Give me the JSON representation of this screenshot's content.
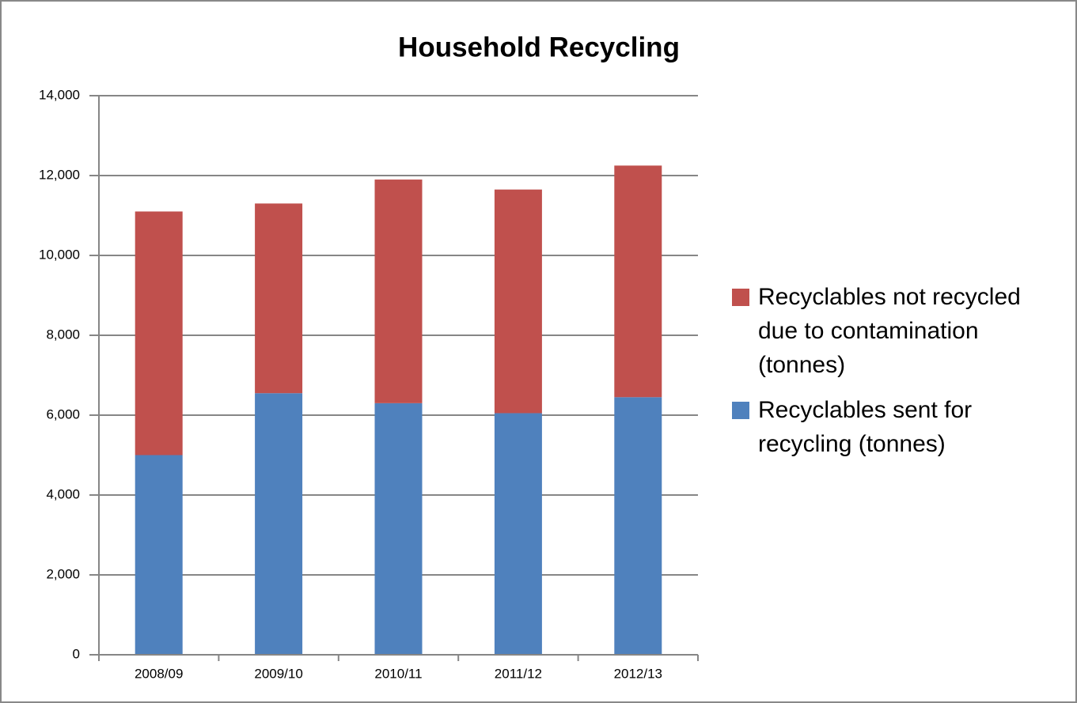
{
  "chart_data": {
    "type": "bar",
    "stacked": true,
    "title": "Household Recycling",
    "categories": [
      "2008/09",
      "2009/10",
      "2010/11",
      "2011/12",
      "2012/13"
    ],
    "series": [
      {
        "name": "Recyclables sent for recycling (tonnes)",
        "color": "#4f81bd",
        "values": [
          5000,
          6550,
          6300,
          6050,
          6450
        ]
      },
      {
        "name": "Recyclables not recycled due to contamination (tonnes)",
        "color": "#c0504d",
        "values": [
          6100,
          4750,
          5600,
          5600,
          5800
        ]
      }
    ],
    "ylim": [
      0,
      14000
    ],
    "yticks": [
      0,
      {
        "value": 2000,
        "label": "2,000"
      },
      {
        "value": 4000,
        "label": "4,000"
      },
      {
        "value": 6000,
        "label": "6,000"
      },
      {
        "value": 8000,
        "label": "8,000"
      },
      {
        "value": 10000,
        "label": "10,000"
      },
      {
        "value": 12000,
        "label": "12,000"
      },
      {
        "value": 14000,
        "label": "14,000"
      }
    ],
    "grid": true,
    "legend": "right"
  }
}
